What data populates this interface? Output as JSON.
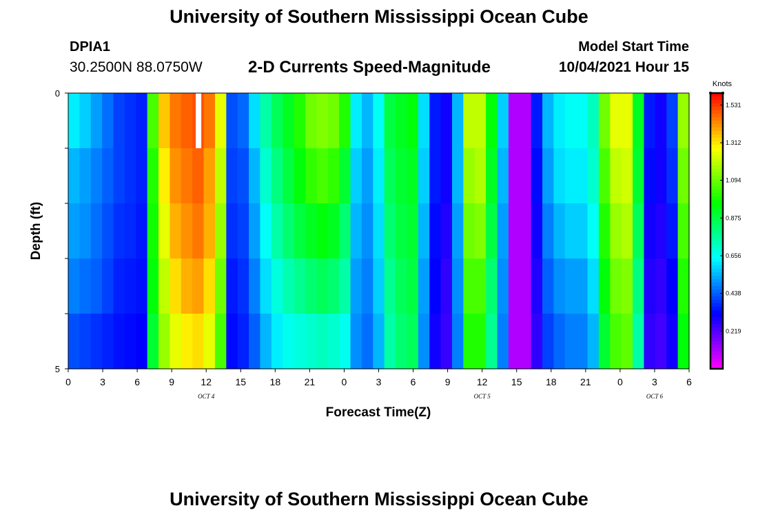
{
  "header": {
    "title": "University of Southern Mississippi Ocean Cube",
    "station_id": "DPIA1",
    "coords": "30.2500N  88.0750W",
    "chart_title": "2-D Currents Speed-Magnitude",
    "start_label": "Model Start Time",
    "start_time": "10/04/2021 Hour 15"
  },
  "footer": {
    "title": "University of Southern Mississippi Ocean Cube"
  },
  "chart_data": {
    "type": "heatmap",
    "title": "2-D Currents Speed-Magnitude",
    "xlabel": "Forecast Time(Z)",
    "ylabel": "Depth (ft)",
    "x_range_hours": [
      0,
      54
    ],
    "y_range": [
      0,
      5
    ],
    "y_ticks": [
      "0",
      "5"
    ],
    "x_tick_labels": [
      "0",
      "3",
      "6",
      "9",
      "12",
      "15",
      "18",
      "21",
      "0",
      "3",
      "6",
      "9",
      "12",
      "15",
      "18",
      "21",
      "0",
      "3",
      "6"
    ],
    "date_labels": [
      {
        "label": "OCT 4",
        "hour": 12
      },
      {
        "label": "OCT 5",
        "hour": 36
      },
      {
        "label": "OCT 6",
        "hour": 51
      }
    ],
    "colorbar": {
      "label": "Knots",
      "min": 0,
      "max": 1.6,
      "tick_labels": [
        "1.531",
        "1.312",
        "1.094",
        "0.875",
        "0.656",
        "0.438",
        "0.219"
      ],
      "tick_values": [
        1.531,
        1.312,
        1.094,
        0.875,
        0.656,
        0.438,
        0.219
      ]
    },
    "depth_layers": 5,
    "hours": [
      0,
      1,
      2,
      3,
      4,
      5,
      6,
      7,
      8,
      9,
      10,
      11,
      12,
      13,
      14,
      15,
      16,
      17,
      18,
      19,
      20,
      21,
      22,
      23,
      24,
      25,
      26,
      27,
      28,
      29,
      30,
      31,
      32,
      33,
      34,
      35,
      36,
      37,
      38,
      39,
      40,
      41,
      42,
      43,
      44,
      45,
      46,
      47,
      48,
      49,
      50,
      51,
      52,
      53,
      54
    ],
    "values": [
      [
        0.62,
        0.58,
        0.52,
        0.46,
        0.4,
        0.38,
        0.36,
        1.05,
        1.35,
        1.45,
        1.48,
        1.5,
        1.45,
        1.25,
        0.42,
        0.45,
        0.6,
        0.75,
        0.85,
        0.92,
        1.0,
        1.1,
        1.12,
        1.1,
        1.0,
        0.62,
        0.55,
        0.65,
        0.88,
        0.92,
        0.95,
        0.6,
        0.35,
        0.3,
        0.55,
        1.2,
        1.2,
        0.95,
        0.58,
        0.1,
        0.1,
        0.35,
        0.55,
        0.62,
        0.65,
        0.65,
        0.72,
        1.1,
        1.25,
        1.25,
        0.92,
        0.35,
        0.3,
        0.4,
        1.15
      ],
      [
        0.55,
        0.52,
        0.48,
        0.44,
        0.4,
        0.38,
        0.36,
        1.0,
        1.3,
        1.42,
        1.45,
        1.48,
        1.4,
        1.2,
        0.4,
        0.42,
        0.55,
        0.7,
        0.8,
        0.88,
        0.95,
        1.02,
        1.05,
        1.02,
        0.9,
        0.58,
        0.52,
        0.62,
        0.85,
        0.9,
        0.92,
        0.58,
        0.35,
        0.3,
        0.55,
        1.15,
        1.18,
        0.92,
        0.55,
        0.1,
        0.1,
        0.33,
        0.52,
        0.6,
        0.62,
        0.62,
        0.7,
        1.05,
        1.2,
        1.22,
        0.9,
        0.33,
        0.3,
        0.38,
        1.1
      ],
      [
        0.52,
        0.5,
        0.46,
        0.42,
        0.38,
        0.37,
        0.35,
        0.98,
        1.25,
        1.38,
        1.42,
        1.45,
        1.38,
        1.15,
        0.38,
        0.4,
        0.52,
        0.65,
        0.75,
        0.82,
        0.88,
        0.92,
        0.95,
        0.92,
        0.82,
        0.55,
        0.5,
        0.6,
        0.82,
        0.88,
        0.9,
        0.55,
        0.33,
        0.28,
        0.52,
        1.1,
        1.12,
        0.88,
        0.52,
        0.1,
        0.1,
        0.3,
        0.48,
        0.55,
        0.58,
        0.58,
        0.65,
        1.0,
        1.15,
        1.18,
        0.85,
        0.3,
        0.28,
        0.35,
        1.05
      ],
      [
        0.48,
        0.46,
        0.44,
        0.4,
        0.36,
        0.35,
        0.34,
        0.95,
        1.2,
        1.32,
        1.38,
        1.4,
        1.32,
        1.1,
        0.35,
        0.38,
        0.48,
        0.6,
        0.68,
        0.74,
        0.78,
        0.82,
        0.85,
        0.82,
        0.75,
        0.52,
        0.48,
        0.58,
        0.78,
        0.85,
        0.88,
        0.52,
        0.32,
        0.26,
        0.5,
        1.05,
        1.05,
        0.82,
        0.5,
        0.1,
        0.1,
        0.28,
        0.44,
        0.5,
        0.52,
        0.52,
        0.6,
        0.95,
        1.1,
        1.12,
        0.8,
        0.28,
        0.26,
        0.32,
        1.0
      ],
      [
        0.42,
        0.4,
        0.38,
        0.36,
        0.34,
        0.33,
        0.32,
        0.9,
        1.15,
        1.25,
        1.3,
        1.32,
        1.25,
        1.05,
        0.33,
        0.36,
        0.44,
        0.55,
        0.62,
        0.66,
        0.68,
        0.7,
        0.72,
        0.7,
        0.66,
        0.5,
        0.46,
        0.55,
        0.75,
        0.82,
        0.85,
        0.5,
        0.3,
        0.25,
        0.48,
        1.0,
        1.0,
        0.78,
        0.48,
        0.1,
        0.1,
        0.26,
        0.4,
        0.45,
        0.48,
        0.48,
        0.55,
        0.9,
        1.05,
        1.08,
        0.75,
        0.26,
        0.24,
        0.3,
        0.95
      ]
    ],
    "grid": false
  },
  "colors": {
    "background": "#ffffff",
    "axis": "#000000",
    "missing_cell": "#ffffff"
  }
}
